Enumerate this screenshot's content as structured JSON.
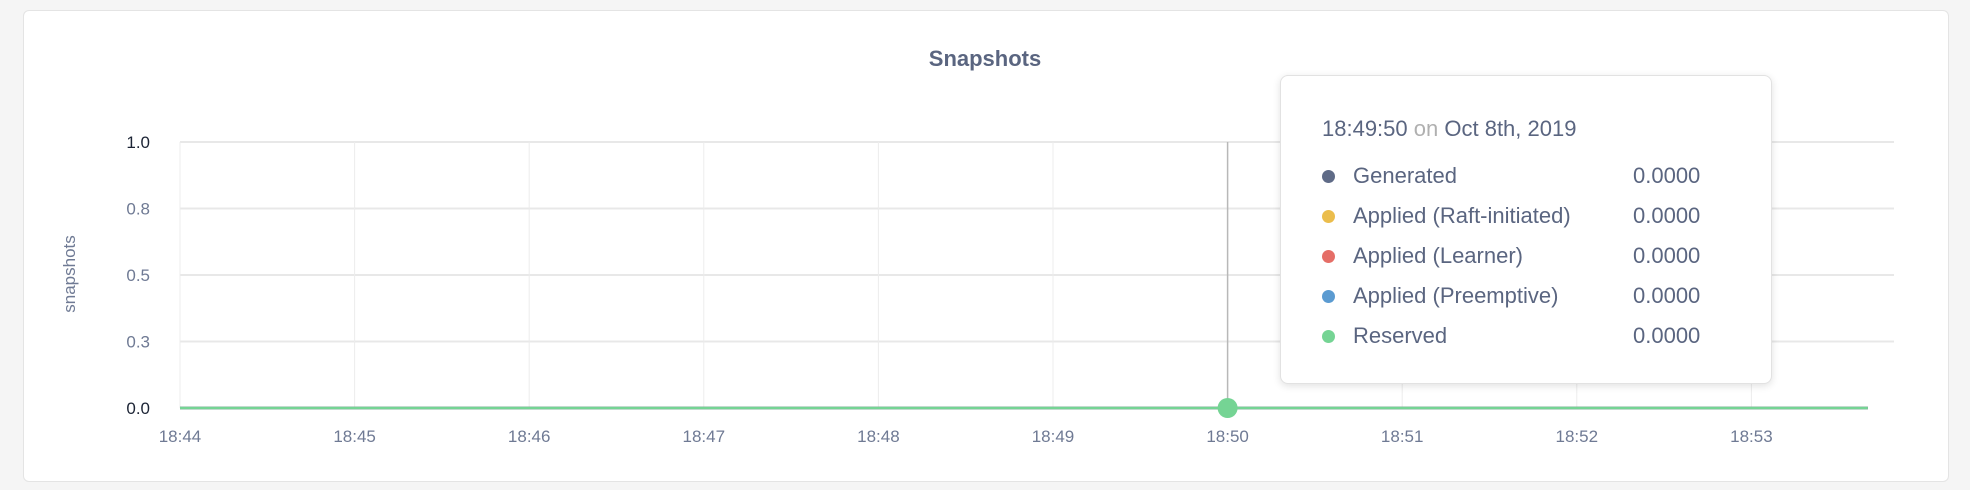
{
  "chart_data": {
    "type": "line",
    "title": "Snapshots",
    "ylabel": "snapshots",
    "xlabel": "",
    "ylim": [
      0,
      1
    ],
    "y_ticks": [
      0,
      0.25,
      0.5,
      0.75,
      1.0
    ],
    "y_tick_labels": [
      "0.0",
      "0.3",
      "0.5",
      "0.8",
      "1.0"
    ],
    "x_tick_labels": [
      "18:44",
      "18:45",
      "18:46",
      "18:47",
      "18:48",
      "18:49",
      "18:50",
      "18:51",
      "18:52",
      "18:53"
    ],
    "xlim": [
      "18:44",
      "18:53:40"
    ],
    "grid": true,
    "series": [
      {
        "name": "Generated",
        "color": "#5f6b87",
        "x": [
          "18:44",
          "18:53:40"
        ],
        "values": [
          0,
          0
        ]
      },
      {
        "name": "Applied (Raft-initiated)",
        "color": "#ebbd4c",
        "x": [
          "18:44",
          "18:53:40"
        ],
        "values": [
          0,
          0
        ]
      },
      {
        "name": "Applied (Learner)",
        "color": "#e56e67",
        "x": [
          "18:44",
          "18:53:40"
        ],
        "values": [
          0,
          0
        ]
      },
      {
        "name": "Applied (Preemptive)",
        "color": "#5b9bd1",
        "x": [
          "18:44",
          "18:53:40"
        ],
        "values": [
          0,
          0
        ]
      },
      {
        "name": "Reserved",
        "color": "#75d494",
        "x": [
          "18:44",
          "18:53:40"
        ],
        "values": [
          0,
          0
        ]
      }
    ],
    "hover": {
      "x": "18:50"
    }
  },
  "tooltip": {
    "time": "18:49:50",
    "on": "on",
    "date": "Oct 8th, 2019",
    "rows": [
      {
        "label": "Generated",
        "value": "0.0000",
        "color": "#5f6b87"
      },
      {
        "label": "Applied (Raft-initiated)",
        "value": "0.0000",
        "color": "#ebbd4c"
      },
      {
        "label": "Applied (Learner)",
        "value": "0.0000",
        "color": "#e56e67"
      },
      {
        "label": "Applied (Preemptive)",
        "value": "0.0000",
        "color": "#5b9bd1"
      },
      {
        "label": "Reserved",
        "value": "0.0000",
        "color": "#75d494"
      }
    ]
  }
}
